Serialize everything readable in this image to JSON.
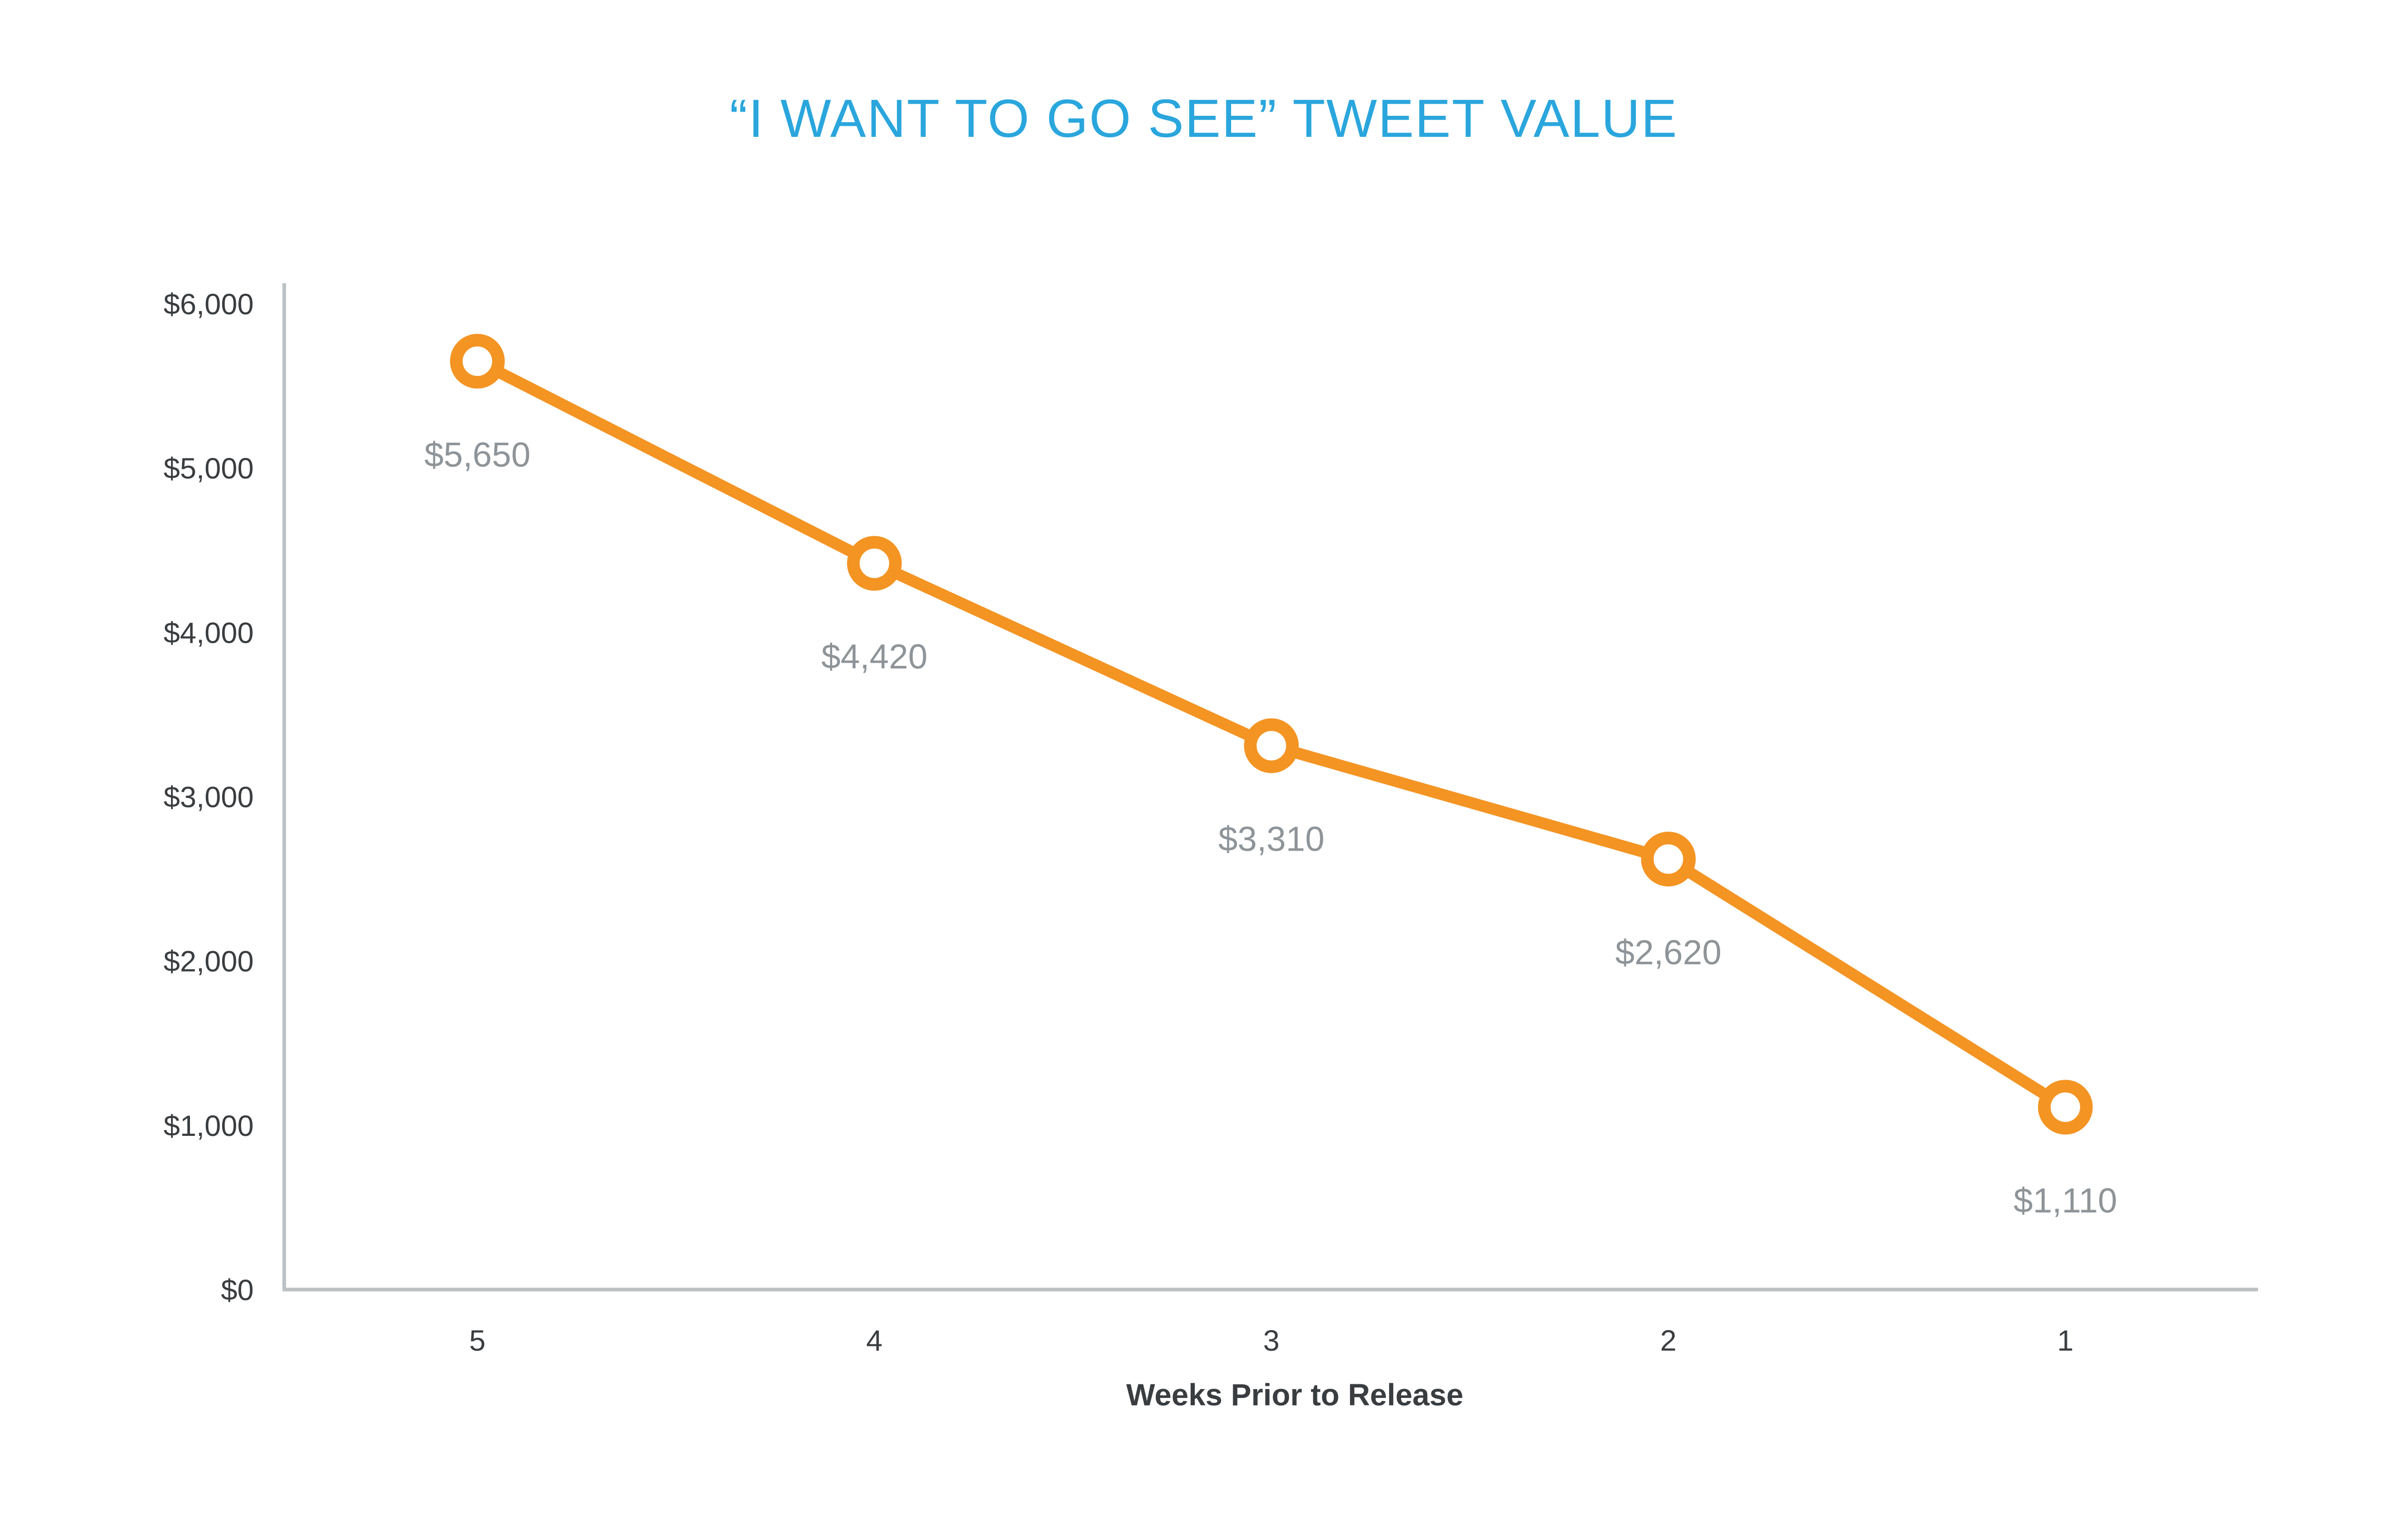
{
  "chart_data": {
    "type": "line",
    "title": "“I WANT TO GO SEE” TWEET VALUE",
    "xlabel": "Weeks Prior to Release",
    "ylabel": "",
    "categories": [
      "5",
      "4",
      "3",
      "2",
      "1"
    ],
    "values": [
      5650,
      4420,
      3310,
      2620,
      1110
    ],
    "data_labels": [
      "$5,650",
      "$4,420",
      "$3,310",
      "$2,620",
      "$1,110"
    ],
    "ylim": [
      0,
      6000
    ],
    "yticks": [
      0,
      1000,
      2000,
      3000,
      4000,
      5000,
      6000
    ],
    "ytick_labels": [
      "$0",
      "$1,000",
      "$2,000",
      "$3,000",
      "$4,000",
      "$5,000",
      "$6,000"
    ],
    "grid": false,
    "legend": "none"
  },
  "colors": {
    "title": "#2aa6dd",
    "line": "#f39423",
    "marker_fill": "#ffffff",
    "axis": "#bcc1c4",
    "data_label": "#8e9498",
    "tick_label": "#3a3d40"
  }
}
